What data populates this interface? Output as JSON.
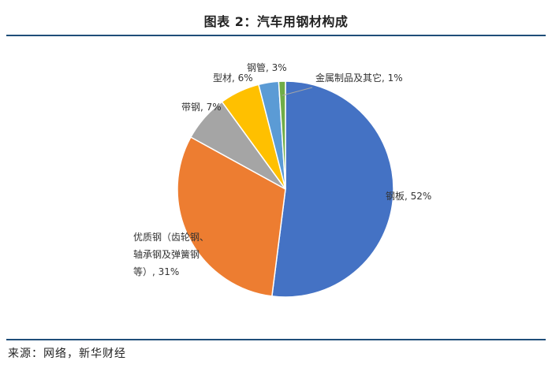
{
  "title": "图表 2：汽车用钢材构成",
  "source": "来源：网络，新华财经",
  "chart_data": {
    "type": "pie",
    "title": "图表 2：汽车用钢材构成",
    "slices": [
      {
        "lines": [
          "钢板, 52%"
        ],
        "value": 52,
        "color": "#4472c4"
      },
      {
        "lines": [
          "优质钢（齿轮钢、",
          "轴承钢及弹簧钢",
          "等）, 31%"
        ],
        "value": 31,
        "color": "#ed7d31"
      },
      {
        "lines": [
          "带钢, 7%"
        ],
        "value": 7,
        "color": "#a5a5a5"
      },
      {
        "lines": [
          "型材, 6%"
        ],
        "value": 6,
        "color": "#ffc000"
      },
      {
        "lines": [
          "钢管, 3%"
        ],
        "value": 3,
        "color": "#5b9bd5"
      },
      {
        "lines": [
          "金属制品及其它, 1%"
        ],
        "value": 1,
        "color": "#70ad47"
      }
    ]
  }
}
